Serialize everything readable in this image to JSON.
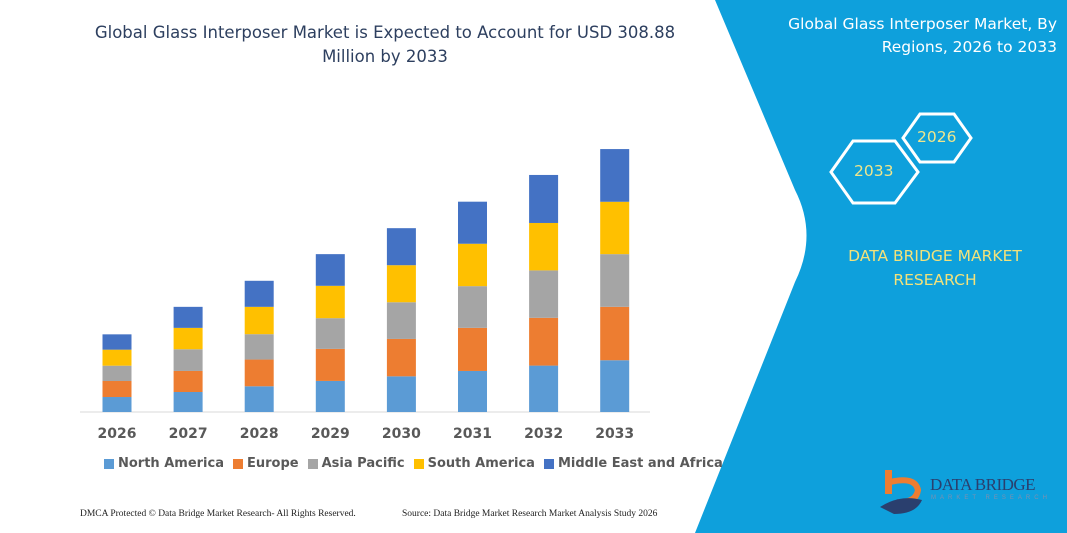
{
  "title": "Global Glass Interposer Market is Expected to Account for USD 308.88 Million by 2033",
  "right_panel": {
    "title": "Global Glass Interposer Market, By Regions, 2026 to 2033",
    "hex_start": "2026",
    "hex_end": "2033",
    "brand": "DATA BRIDGE MARKET RESEARCH",
    "logo_text": "DATA BRIDGE",
    "logo_sub": "MARKET RESEARCH",
    "panel_color": "#0ea0dc"
  },
  "footer": {
    "left": "DMCA Protected © Data Bridge Market Research-  All Rights Reserved.",
    "right": "Source: Data Bridge Market Research  Market Analysis Study 2026"
  },
  "chart_data": {
    "type": "bar",
    "stacked": true,
    "title": "Global Glass Interposer Market is Expected to Account for USD 308.88 Million by 2033",
    "xlabel": "",
    "ylabel": "",
    "unit": "USD Million (estimated)",
    "ylim": [
      0,
      308.88
    ],
    "grid": false,
    "legend": "bottom",
    "categories": [
      "2026",
      "2027",
      "2028",
      "2029",
      "2030",
      "2031",
      "2032",
      "2033"
    ],
    "series": [
      {
        "name": "North America",
        "color": "#5b9bd5",
        "values": [
          17.6,
          23.5,
          30.2,
          36.5,
          41.9,
          48.2,
          54.5,
          60.8
        ]
      },
      {
        "name": "Europe",
        "color": "#ed7d31",
        "values": [
          18.8,
          24.7,
          31.4,
          37.6,
          43.9,
          50.6,
          56.1,
          62.7
        ]
      },
      {
        "name": "Asia Pacific",
        "color": "#a5a5a5",
        "values": [
          18.0,
          25.5,
          29.8,
          36.1,
          43.1,
          49.0,
          55.7,
          61.9
        ]
      },
      {
        "name": "South America",
        "color": "#ffc000",
        "values": [
          18.8,
          25.1,
          32.1,
          38.0,
          43.5,
          49.8,
          55.7,
          61.5
        ]
      },
      {
        "name": "Middle East and Africa",
        "color": "#4472c4",
        "values": [
          18.0,
          24.7,
          30.6,
          37.2,
          43.5,
          49.4,
          56.4,
          61.9
        ]
      }
    ]
  }
}
